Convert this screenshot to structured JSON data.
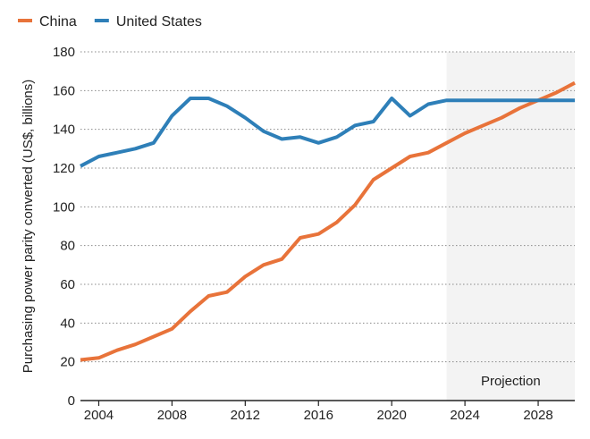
{
  "chart_data": {
    "type": "line",
    "title": "",
    "xlabel": "",
    "ylabel": "Purchasing power parity converted (US$, billions)",
    "xlim": [
      2003,
      2030
    ],
    "ylim": [
      0,
      180
    ],
    "x_ticks": [
      2004,
      2008,
      2012,
      2016,
      2020,
      2024,
      2028
    ],
    "y_ticks": [
      0,
      20,
      40,
      60,
      80,
      100,
      120,
      140,
      160,
      180
    ],
    "grid": "horizontal dotted",
    "legend_position": "top-left",
    "projection": {
      "label": "Projection",
      "start": 2023,
      "end": 2030,
      "shade_color": "#f3f3f3"
    },
    "x": [
      2003,
      2004,
      2005,
      2006,
      2007,
      2008,
      2009,
      2010,
      2011,
      2012,
      2013,
      2014,
      2015,
      2016,
      2017,
      2018,
      2019,
      2020,
      2021,
      2022,
      2023,
      2024,
      2025,
      2026,
      2027,
      2028,
      2029,
      2030
    ],
    "series": [
      {
        "name": "China",
        "color": "#e8733a",
        "values": [
          21,
          22,
          26,
          29,
          33,
          37,
          46,
          54,
          56,
          64,
          70,
          73,
          84,
          86,
          92,
          101,
          114,
          120,
          126,
          128,
          133,
          138,
          142,
          146,
          151,
          155,
          159,
          164
        ]
      },
      {
        "name": "United States",
        "color": "#2e7fb8",
        "values": [
          121,
          126,
          128,
          130,
          133,
          147,
          156,
          156,
          152,
          146,
          139,
          135,
          136,
          133,
          136,
          142,
          144,
          156,
          147,
          153,
          155,
          155,
          155,
          155,
          155,
          155,
          155,
          155
        ]
      }
    ]
  }
}
